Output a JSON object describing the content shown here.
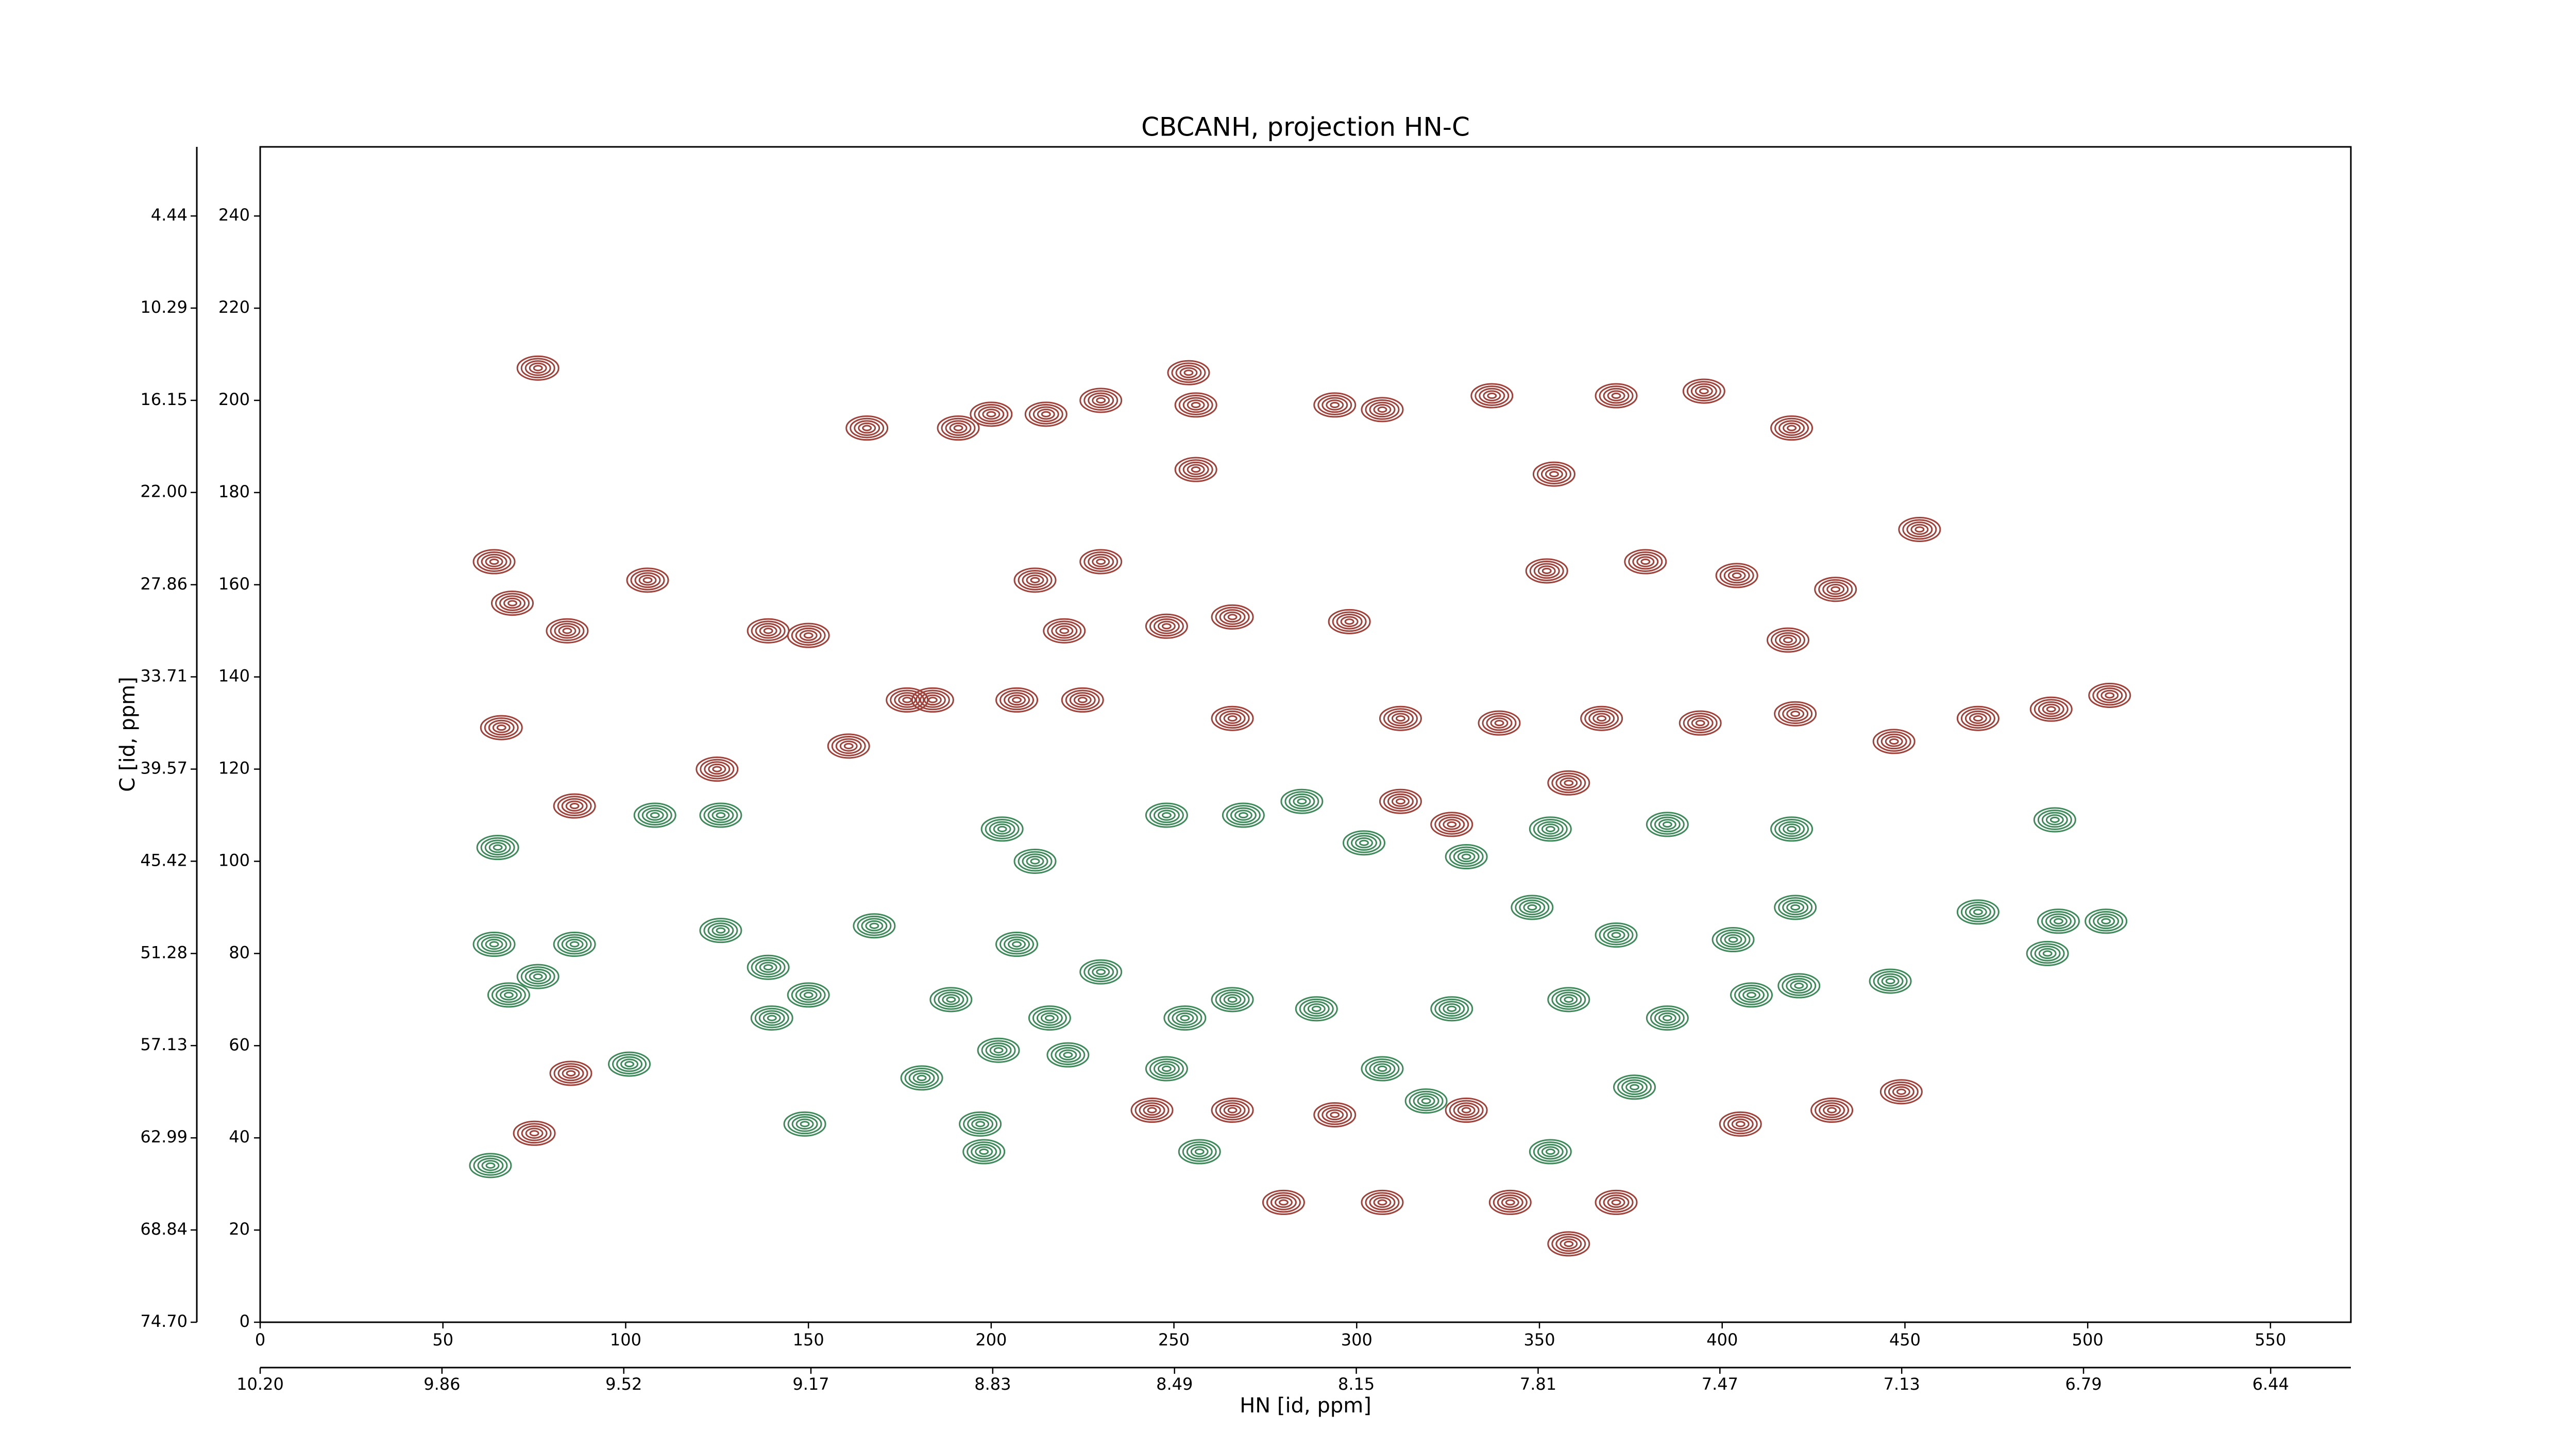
{
  "chart_data": {
    "type": "contour",
    "title": "CBCANH, projection HN-C",
    "xlabel": "HN [id, ppm]",
    "ylabel": "C [id, ppm]",
    "xlim": [
      0,
      572
    ],
    "ylim": [
      0,
      255
    ],
    "xticks": [
      0,
      50,
      100,
      150,
      200,
      250,
      300,
      350,
      400,
      450,
      500,
      550
    ],
    "yticks": [
      0,
      20,
      40,
      60,
      80,
      100,
      120,
      140,
      160,
      180,
      200,
      220,
      240
    ],
    "x2lim": [
      10.2,
      6.29
    ],
    "x2ticks": [
      {
        "value": 10.2,
        "label": "10.20"
      },
      9.86,
      9.52,
      9.17,
      8.83,
      8.49,
      8.15,
      7.81,
      7.47,
      7.13,
      6.79,
      6.44
    ],
    "y2lim": [
      74.7,
      0.05
    ],
    "y2ticks": [
      {
        "value": 74.7,
        "label": "74.70"
      },
      68.84,
      62.99,
      57.13,
      51.28,
      45.42,
      39.57,
      33.71,
      27.86,
      {
        "value": 22.0,
        "label": "22.00"
      },
      16.15,
      10.29,
      4.44
    ],
    "series": [
      {
        "color": "#a0413a",
        "x": [
          76,
          64,
          69,
          84,
          106,
          66,
          86,
          125,
          139,
          150,
          166,
          161,
          177,
          191,
          200,
          215,
          230,
          230,
          212,
          220,
          254,
          256,
          256,
          294,
          307,
          337,
          354,
          352,
          371,
          395,
          419,
          431,
          418,
          404,
          379,
          454,
          490,
          506,
          470,
          447,
          420,
          266,
          298,
          248,
          225,
          207,
          184,
          266,
          312,
          339,
          367,
          394,
          358,
          244,
          266,
          294,
          330,
          405,
          430,
          449,
          280,
          307,
          342,
          371,
          358,
          326,
          312,
          75,
          85
        ],
        "values": [
          207,
          165,
          156,
          150,
          161,
          129,
          112,
          120,
          150,
          149,
          194,
          125,
          135,
          194,
          197,
          197,
          200,
          165,
          161,
          150,
          206,
          199,
          185,
          199,
          198,
          201,
          184,
          163,
          201,
          202,
          194,
          159,
          148,
          162,
          165,
          172,
          133,
          136,
          131,
          126,
          132,
          153,
          152,
          151,
          135,
          135,
          135,
          131,
          131,
          130,
          131,
          130,
          117,
          46,
          46,
          45,
          46,
          43,
          46,
          50,
          26,
          26,
          26,
          26,
          17,
          108,
          113,
          41,
          54
        ]
      },
      {
        "color": "#3f8a5a",
        "x": [
          65,
          64,
          76,
          68,
          86,
          108,
          126,
          139,
          150,
          140,
          126,
          168,
          181,
          197,
          203,
          212,
          207,
          216,
          230,
          253,
          266,
          289,
          307,
          326,
          358,
          385,
          408,
          421,
          446,
          470,
          492,
          505,
          489,
          420,
          403,
          371,
          348,
          353,
          330,
          302,
          285,
          269,
          248,
          419,
          385,
          491,
          376,
          353,
          319,
          248,
          221,
          202,
          189,
          198,
          63,
          101,
          149,
          257
        ],
        "values": [
          103,
          82,
          75,
          71,
          82,
          110,
          110,
          77,
          71,
          66,
          85,
          86,
          53,
          43,
          107,
          100,
          82,
          66,
          76,
          66,
          70,
          68,
          55,
          68,
          70,
          66,
          71,
          73,
          74,
          89,
          87,
          87,
          80,
          90,
          83,
          84,
          90,
          107,
          101,
          104,
          113,
          110,
          110,
          107,
          108,
          109,
          51,
          37,
          48,
          55,
          58,
          59,
          70,
          37,
          34,
          56,
          43,
          37
        ]
      }
    ]
  }
}
